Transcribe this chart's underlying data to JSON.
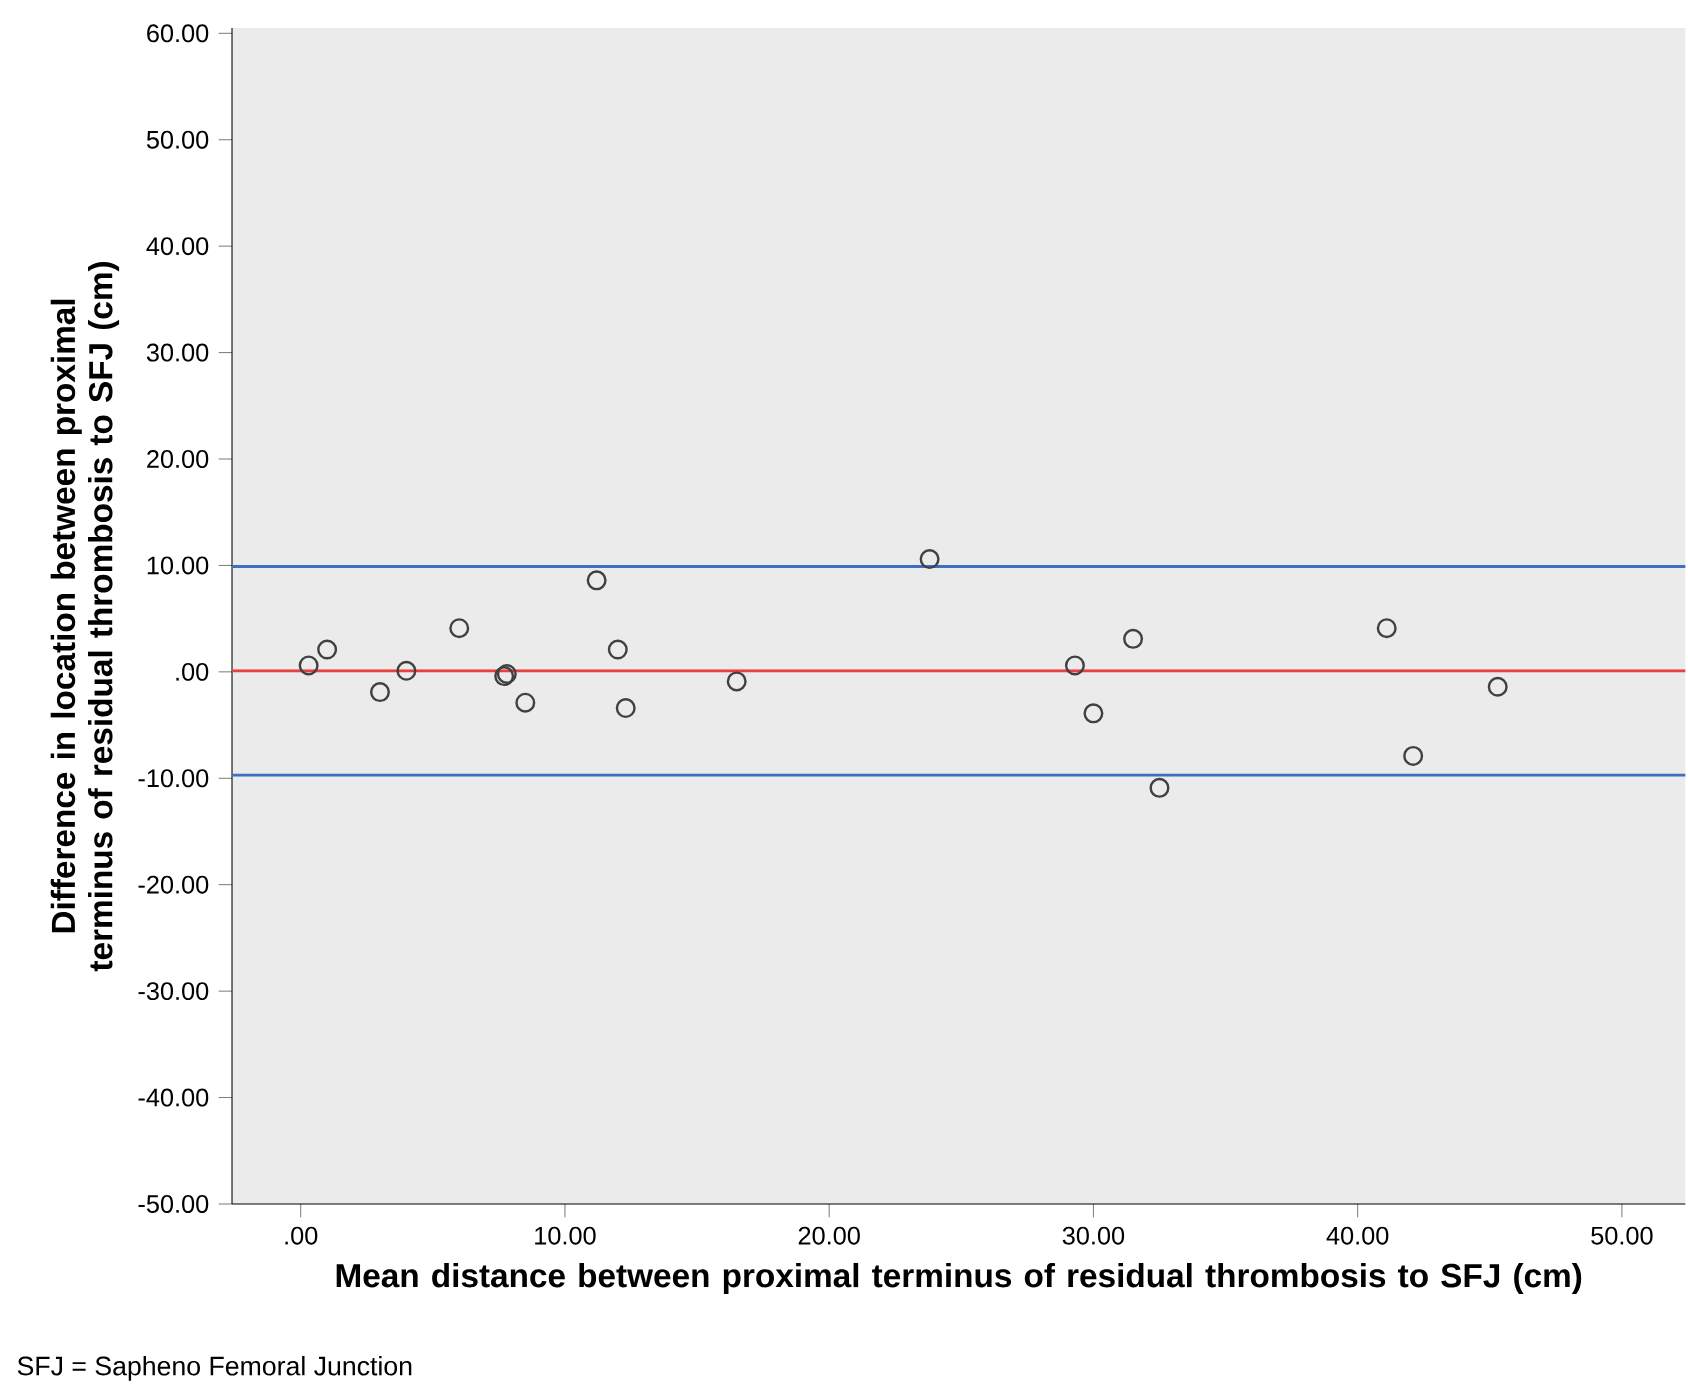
{
  "chart_data": {
    "type": "scatter",
    "xlabel": "Mean distance between proximal terminus of residual thrombosis to SFJ (cm)",
    "ylabel": "Difference in location between proximal terminus of residual thrombosis to SFJ (cm)",
    "annotations": [
      "SFJ = Sapheno Femoral Junction"
    ],
    "x": [
      0.3,
      1.0,
      3.0,
      4.0,
      6.0,
      7.7,
      7.8,
      8.5,
      11.2,
      12.0,
      12.3,
      16.5,
      23.8,
      29.3,
      30.0,
      31.5,
      32.5,
      41.1,
      42.1,
      45.3
    ],
    "series": [
      {
        "color": "#404040",
        "values": [
          0.6,
          2.1,
          -1.9,
          0.1,
          4.1,
          -0.4,
          -0.2,
          -2.9,
          8.6,
          2.1,
          -3.4,
          -0.9,
          10.6,
          0.6,
          -3.9,
          3.1,
          -10.9,
          4.1,
          -7.9,
          -1.4
        ]
      }
    ],
    "marker": "circle",
    "xlim": [
      -2.6,
      52.4
    ],
    "ylim": [
      -50,
      60.5
    ],
    "xticks": [
      {
        "value": 0,
        "label": ".00"
      },
      {
        "value": 10,
        "label": "10.00"
      },
      {
        "value": 20,
        "label": "20.00"
      },
      {
        "value": 30,
        "label": "30.00"
      },
      {
        "value": 40,
        "label": "40.00"
      },
      {
        "value": 50,
        "label": "50.00"
      }
    ],
    "yticks": [
      {
        "value": -50,
        "label": "-50.00"
      },
      {
        "value": -40,
        "label": "-40.00"
      },
      {
        "value": -30,
        "label": "-30.00"
      },
      {
        "value": -20,
        "label": "-20.00"
      },
      {
        "value": -10,
        "label": "-10.00"
      },
      {
        "value": 0,
        "label": ".00"
      },
      {
        "value": 10,
        "label": "10.00"
      },
      {
        "value": 20,
        "label": "20.00"
      },
      {
        "value": 30,
        "label": "30.00"
      },
      {
        "value": 40,
        "label": "40.00"
      },
      {
        "value": 50,
        "label": "50.00"
      },
      {
        "value": 60,
        "label": "60.00"
      }
    ],
    "ref_lines": [
      {
        "axis": "y",
        "value": 9.9,
        "color": "#3f6fbf"
      },
      {
        "axis": "y",
        "value": 0.1,
        "color": "#e8403f"
      },
      {
        "axis": "y",
        "value": -9.7,
        "color": "#3f6fbf"
      }
    ],
    "grid": false
  }
}
